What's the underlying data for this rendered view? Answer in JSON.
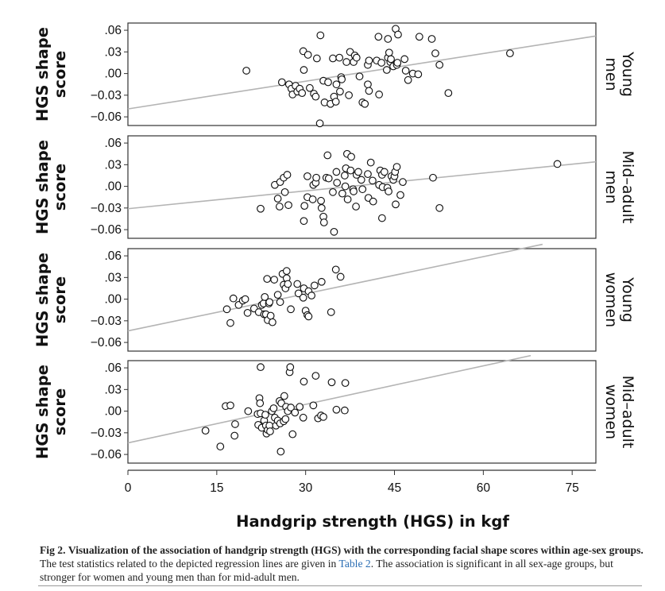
{
  "chart_data": {
    "type": "scatter",
    "title": "",
    "xlabel": "Handgrip strength (HGS) in kgf",
    "ylabel": "HGS shape score",
    "xlim": [
      0,
      79
    ],
    "ylim": [
      -0.072,
      0.07
    ],
    "x_ticks": [
      0,
      15,
      30,
      45,
      60,
      75
    ],
    "x_tick_labels": [
      "0",
      "15",
      "30",
      "45",
      "60",
      "75"
    ],
    "y_ticks": [
      0.06,
      0.03,
      0.0,
      -0.03,
      -0.06
    ],
    "y_tick_labels": [
      ".06",
      ".03",
      ".00",
      "−0.03",
      "−0.06"
    ],
    "grid": false,
    "colors": {
      "points": "#111111",
      "regression_line": "#b4b4b4",
      "frame": "#333333"
    },
    "panels": [
      {
        "label": "Young men",
        "label_lines": [
          "Young",
          "men"
        ],
        "regression_line": {
          "x": [
            0,
            79
          ],
          "y": [
            -0.049,
            0.052
          ]
        },
        "points": [
          [
            20.0,
            0.004
          ],
          [
            26.0,
            -0.012
          ],
          [
            27.2,
            -0.015
          ],
          [
            27.6,
            -0.021
          ],
          [
            27.8,
            -0.029
          ],
          [
            28.3,
            -0.017
          ],
          [
            28.6,
            -0.025
          ],
          [
            29.0,
            -0.021
          ],
          [
            29.4,
            -0.027
          ],
          [
            29.6,
            0.031
          ],
          [
            29.7,
            0.005
          ],
          [
            30.4,
            0.026
          ],
          [
            30.7,
            -0.02
          ],
          [
            31.4,
            -0.028
          ],
          [
            31.7,
            -0.032
          ],
          [
            31.9,
            0.021
          ],
          [
            32.4,
            -0.069
          ],
          [
            32.5,
            0.053
          ],
          [
            33.0,
            -0.01
          ],
          [
            33.2,
            -0.04
          ],
          [
            33.8,
            -0.012
          ],
          [
            34.2,
            -0.042
          ],
          [
            34.6,
            0.021
          ],
          [
            34.8,
            -0.032
          ],
          [
            35.1,
            -0.039
          ],
          [
            35.2,
            -0.015
          ],
          [
            35.7,
            0.022
          ],
          [
            35.8,
            -0.025
          ],
          [
            36.0,
            -0.005
          ],
          [
            36.1,
            -0.008
          ],
          [
            36.9,
            0.016
          ],
          [
            37.3,
            -0.03
          ],
          [
            37.5,
            0.03
          ],
          [
            38.1,
            0.016
          ],
          [
            38.3,
            0.025
          ],
          [
            38.6,
            0.022
          ],
          [
            39.1,
            -0.004
          ],
          [
            39.6,
            -0.04
          ],
          [
            40.0,
            -0.042
          ],
          [
            40.5,
            0.012
          ],
          [
            40.5,
            -0.015
          ],
          [
            40.7,
            0.018
          ],
          [
            40.7,
            -0.024
          ],
          [
            42.0,
            0.018
          ],
          [
            42.3,
            0.051
          ],
          [
            42.4,
            -0.029
          ],
          [
            42.8,
            0.015
          ],
          [
            43.7,
            0.005
          ],
          [
            43.9,
            0.022
          ],
          [
            43.9,
            0.048
          ],
          [
            44.1,
            0.029
          ],
          [
            44.3,
            0.016
          ],
          [
            44.4,
            0.02
          ],
          [
            44.8,
            0.01
          ],
          [
            45.2,
            0.062
          ],
          [
            45.4,
            0.012
          ],
          [
            45.5,
            0.015
          ],
          [
            45.6,
            0.054
          ],
          [
            46.7,
            0.02
          ],
          [
            46.9,
            0.004
          ],
          [
            47.3,
            -0.009
          ],
          [
            48.1,
            0.0
          ],
          [
            49.0,
            -0.001
          ],
          [
            49.2,
            0.051
          ],
          [
            51.3,
            0.048
          ],
          [
            51.9,
            0.028
          ],
          [
            52.6,
            0.012
          ],
          [
            54.1,
            -0.027
          ],
          [
            64.5,
            0.028
          ]
        ]
      },
      {
        "label": "Mid-adult men",
        "label_lines": [
          "Mid–adult",
          "men"
        ],
        "regression_line": {
          "x": [
            0,
            79
          ],
          "y": [
            -0.031,
            0.034
          ]
        },
        "points": [
          [
            22.4,
            -0.031
          ],
          [
            24.8,
            0.002
          ],
          [
            25.3,
            -0.017
          ],
          [
            25.6,
            -0.028
          ],
          [
            25.7,
            0.006
          ],
          [
            26.3,
            0.012
          ],
          [
            26.5,
            -0.008
          ],
          [
            26.9,
            0.016
          ],
          [
            27.1,
            -0.026
          ],
          [
            29.7,
            -0.048
          ],
          [
            29.8,
            -0.027
          ],
          [
            30.3,
            -0.015
          ],
          [
            30.3,
            0.014
          ],
          [
            31.2,
            -0.018
          ],
          [
            31.3,
            0.002
          ],
          [
            31.7,
            0.005
          ],
          [
            31.8,
            0.012
          ],
          [
            32.6,
            -0.02
          ],
          [
            32.7,
            -0.03
          ],
          [
            33.0,
            -0.042
          ],
          [
            33.1,
            -0.05
          ],
          [
            33.5,
            0.012
          ],
          [
            33.7,
            0.043
          ],
          [
            33.9,
            0.011
          ],
          [
            34.6,
            -0.008
          ],
          [
            34.8,
            -0.063
          ],
          [
            35.2,
            0.02
          ],
          [
            35.3,
            0.005
          ],
          [
            36.2,
            -0.01
          ],
          [
            36.6,
            0.015
          ],
          [
            36.7,
            0.0
          ],
          [
            36.8,
            0.025
          ],
          [
            37.0,
            0.045
          ],
          [
            37.1,
            -0.018
          ],
          [
            37.6,
            0.022
          ],
          [
            37.7,
            0.041
          ],
          [
            38.0,
            -0.004
          ],
          [
            38.1,
            -0.007
          ],
          [
            38.5,
            -0.028
          ],
          [
            38.6,
            0.016
          ],
          [
            38.9,
            0.02
          ],
          [
            39.4,
            0.009
          ],
          [
            39.6,
            -0.004
          ],
          [
            40.5,
            0.017
          ],
          [
            40.6,
            -0.016
          ],
          [
            41.0,
            0.033
          ],
          [
            41.3,
            0.008
          ],
          [
            41.4,
            -0.021
          ],
          [
            42.4,
            0.002
          ],
          [
            42.6,
            0.022
          ],
          [
            42.9,
            -0.044
          ],
          [
            42.9,
            0.016
          ],
          [
            43.0,
            -0.001
          ],
          [
            43.3,
            0.02
          ],
          [
            43.8,
            -0.002
          ],
          [
            44.0,
            -0.007
          ],
          [
            44.5,
            0.014
          ],
          [
            44.8,
            0.009
          ],
          [
            45.0,
            0.014
          ],
          [
            45.1,
            0.02
          ],
          [
            45.2,
            -0.025
          ],
          [
            45.4,
            0.027
          ],
          [
            46.0,
            -0.012
          ],
          [
            46.4,
            0.006
          ],
          [
            51.5,
            0.012
          ],
          [
            52.6,
            -0.03
          ],
          [
            72.5,
            0.031
          ]
        ]
      },
      {
        "label": "Young women",
        "label_lines": [
          "Young",
          "women"
        ],
        "regression_line": {
          "x": [
            0,
            70
          ],
          "y": [
            -0.044,
            0.076
          ]
        },
        "points": [
          [
            16.7,
            -0.014
          ],
          [
            17.3,
            -0.033
          ],
          [
            17.8,
            0.001
          ],
          [
            18.7,
            -0.008
          ],
          [
            19.4,
            -0.002
          ],
          [
            19.8,
            0.0
          ],
          [
            20.2,
            -0.019
          ],
          [
            21.3,
            -0.013
          ],
          [
            22.1,
            -0.018
          ],
          [
            22.6,
            -0.008
          ],
          [
            22.9,
            -0.006
          ],
          [
            23.0,
            -0.021
          ],
          [
            23.1,
            0.003
          ],
          [
            23.3,
            -0.021
          ],
          [
            23.5,
            0.028
          ],
          [
            23.6,
            -0.029
          ],
          [
            23.8,
            -0.006
          ],
          [
            23.9,
            -0.004
          ],
          [
            24.1,
            -0.023
          ],
          [
            24.4,
            -0.032
          ],
          [
            24.7,
            0.027
          ],
          [
            25.3,
            0.006
          ],
          [
            25.7,
            -0.004
          ],
          [
            26.1,
            0.035
          ],
          [
            26.3,
            0.02
          ],
          [
            26.6,
            0.015
          ],
          [
            26.8,
            0.029
          ],
          [
            26.8,
            0.039
          ],
          [
            27.0,
            0.021
          ],
          [
            27.5,
            -0.014
          ],
          [
            28.6,
            0.021
          ],
          [
            28.8,
            0.008
          ],
          [
            29.6,
            0.002
          ],
          [
            29.7,
            0.015
          ],
          [
            30.0,
            -0.016
          ],
          [
            30.3,
            -0.022
          ],
          [
            30.5,
            -0.024
          ],
          [
            30.5,
            0.011
          ],
          [
            31.0,
            0.005
          ],
          [
            31.5,
            0.019
          ],
          [
            32.7,
            0.024
          ],
          [
            34.3,
            -0.018
          ],
          [
            35.1,
            0.041
          ],
          [
            35.9,
            0.031
          ]
        ]
      },
      {
        "label": "Mid-adult women",
        "label_lines": [
          "Mid–adult",
          "women"
        ],
        "regression_line": {
          "x": [
            0,
            68
          ],
          "y": [
            -0.044,
            0.077
          ]
        },
        "points": [
          [
            13.1,
            -0.027
          ],
          [
            15.6,
            -0.049
          ],
          [
            16.5,
            0.007
          ],
          [
            17.3,
            0.008
          ],
          [
            18.0,
            -0.034
          ],
          [
            18.1,
            -0.018
          ],
          [
            20.3,
            0.0
          ],
          [
            21.9,
            -0.004
          ],
          [
            22.0,
            -0.019
          ],
          [
            22.2,
            0.018
          ],
          [
            22.3,
            0.011
          ],
          [
            22.4,
            -0.003
          ],
          [
            22.4,
            0.061
          ],
          [
            22.6,
            -0.023
          ],
          [
            23.0,
            -0.013
          ],
          [
            23.2,
            -0.005
          ],
          [
            23.3,
            -0.02
          ],
          [
            23.4,
            -0.031
          ],
          [
            23.6,
            -0.026
          ],
          [
            23.9,
            -0.02
          ],
          [
            24.0,
            -0.028
          ],
          [
            24.3,
            0.0
          ],
          [
            24.6,
            0.004
          ],
          [
            24.8,
            -0.009
          ],
          [
            25.0,
            -0.02
          ],
          [
            25.3,
            -0.013
          ],
          [
            25.6,
            0.014
          ],
          [
            25.7,
            -0.017
          ],
          [
            25.8,
            -0.056
          ],
          [
            25.9,
            0.011
          ],
          [
            26.3,
            -0.014
          ],
          [
            26.4,
            0.021
          ],
          [
            26.6,
            -0.011
          ],
          [
            26.7,
            0.006
          ],
          [
            27.0,
            0.0
          ],
          [
            27.3,
            0.054
          ],
          [
            27.4,
            0.061
          ],
          [
            27.5,
            0.005
          ],
          [
            27.8,
            -0.032
          ],
          [
            28.2,
            -0.002
          ],
          [
            29.0,
            0.006
          ],
          [
            29.6,
            -0.009
          ],
          [
            29.7,
            0.041
          ],
          [
            31.3,
            0.008
          ],
          [
            31.7,
            0.049
          ],
          [
            32.1,
            -0.01
          ],
          [
            32.6,
            -0.006
          ],
          [
            33.0,
            -0.008
          ],
          [
            34.4,
            0.04
          ],
          [
            35.2,
            0.002
          ],
          [
            36.6,
            0.001
          ],
          [
            36.7,
            0.039
          ]
        ]
      }
    ]
  },
  "caption": {
    "figure_label": "Fig 2.",
    "title": "Visualization of the association of handgrip strength (HGS) with the corresponding facial shape scores within age-sex groups.",
    "text_before_link": "The test statistics related to the depicted regression lines are given in",
    "link_text": "Table 2",
    "text_after_link": ". The association is significant in all sex-age groups, but stronger for women and young men than for mid-adult men."
  }
}
